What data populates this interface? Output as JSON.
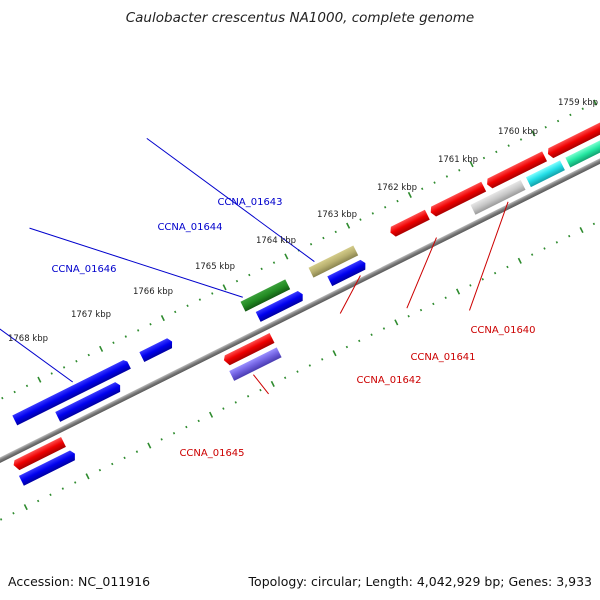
{
  "title": "Caulobacter crescentus NA1000, complete genome",
  "footer": {
    "accession_label": "Accession:",
    "accession": "NC_011916",
    "topology_label": "Topology:",
    "topology": "circular",
    "length_label": "Length:",
    "length": "4,042,929 bp",
    "genes_label": "Genes:",
    "genes": "3,933"
  },
  "colors": {
    "background": "#ffffff",
    "backbone": "#8c8c8c",
    "tick": "#2e8b2e",
    "label_forward": "#0000cc",
    "label_reverse": "#cc0000"
  },
  "scale": {
    "unit": "kbp",
    "labels": [
      "1759 kbp",
      "1760 kbp",
      "1761 kbp",
      "1762 kbp",
      "1763 kbp",
      "1764 kbp",
      "1765 kbp",
      "1766 kbp",
      "1767 kbp",
      "1768 kbp"
    ]
  },
  "genes": [
    {
      "id": "CCNA_01646",
      "strand": "forward",
      "color": "#0a0ae6",
      "labeled": true
    },
    {
      "id": "CCNA_01644",
      "strand": "forward",
      "color": "#2e8b2e",
      "labeled": true
    },
    {
      "id": "CCNA_01643",
      "strand": "forward",
      "color": "#b8b070",
      "labeled": true
    },
    {
      "id": "CCNA_01645",
      "strand": "reverse",
      "color": "#ee1111",
      "labeled": true
    },
    {
      "id": "CCNA_01642",
      "strand": "reverse",
      "color": "#ee1111",
      "labeled": true
    },
    {
      "id": "CCNA_01641",
      "strand": "reverse",
      "color": "#c8c8c8",
      "labeled": true
    },
    {
      "id": "CCNA_01640",
      "strand": "reverse",
      "color": "#ee1111",
      "labeled": true
    }
  ],
  "legend_tracks": {
    "forward_cds_color": "#0a0ae6",
    "reverse_cds_color": "#ee1111",
    "rna_color": "#22e6a0",
    "misc_color": "#22dde6",
    "repeat_color": "#7060e0"
  }
}
